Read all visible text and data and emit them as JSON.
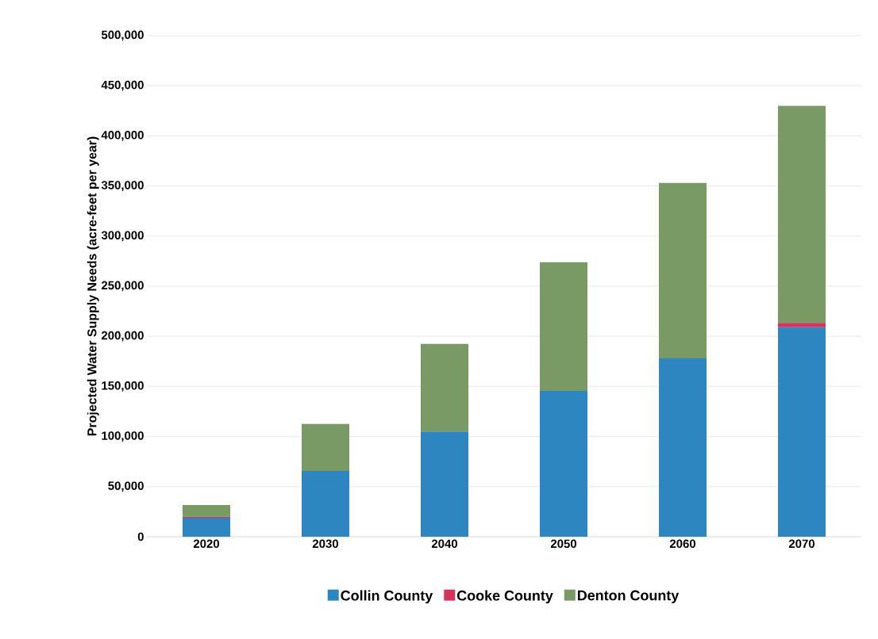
{
  "chart_data": {
    "type": "bar",
    "stacked": true,
    "ylabel": "Projected Water Supply Needs (acre-feet per year)",
    "categories": [
      "2020",
      "2030",
      "2040",
      "2050",
      "2060",
      "2070"
    ],
    "series": [
      {
        "name": "Collin County",
        "color": "#2e86c1",
        "values": [
          19000,
          65600,
          105000,
          145500,
          178000,
          209000
        ]
      },
      {
        "name": "Cooke County",
        "color": "#d6335a",
        "values": [
          1000,
          null,
          null,
          null,
          null,
          4500
        ]
      },
      {
        "name": "Denton County",
        "color": "#7a9a65",
        "values": [
          11600,
          46900,
          87500,
          128500,
          175000,
          216500
        ]
      }
    ],
    "ylim": [
      0,
      500000
    ],
    "yticks": [
      {
        "value": 0,
        "label": "0"
      },
      {
        "value": 50000,
        "label": "50,000"
      },
      {
        "value": 100000,
        "label": "100,000"
      },
      {
        "value": 150000,
        "label": "150,000"
      },
      {
        "value": 200000,
        "label": "200,000"
      },
      {
        "value": 250000,
        "label": "250,000"
      },
      {
        "value": 300000,
        "label": "300,000"
      },
      {
        "value": 350000,
        "label": "350,000"
      },
      {
        "value": 400000,
        "label": "400,000"
      },
      {
        "value": 450000,
        "label": "450,000"
      },
      {
        "value": 500000,
        "label": "500,000"
      }
    ],
    "grid": "y",
    "legend": "bottom"
  }
}
